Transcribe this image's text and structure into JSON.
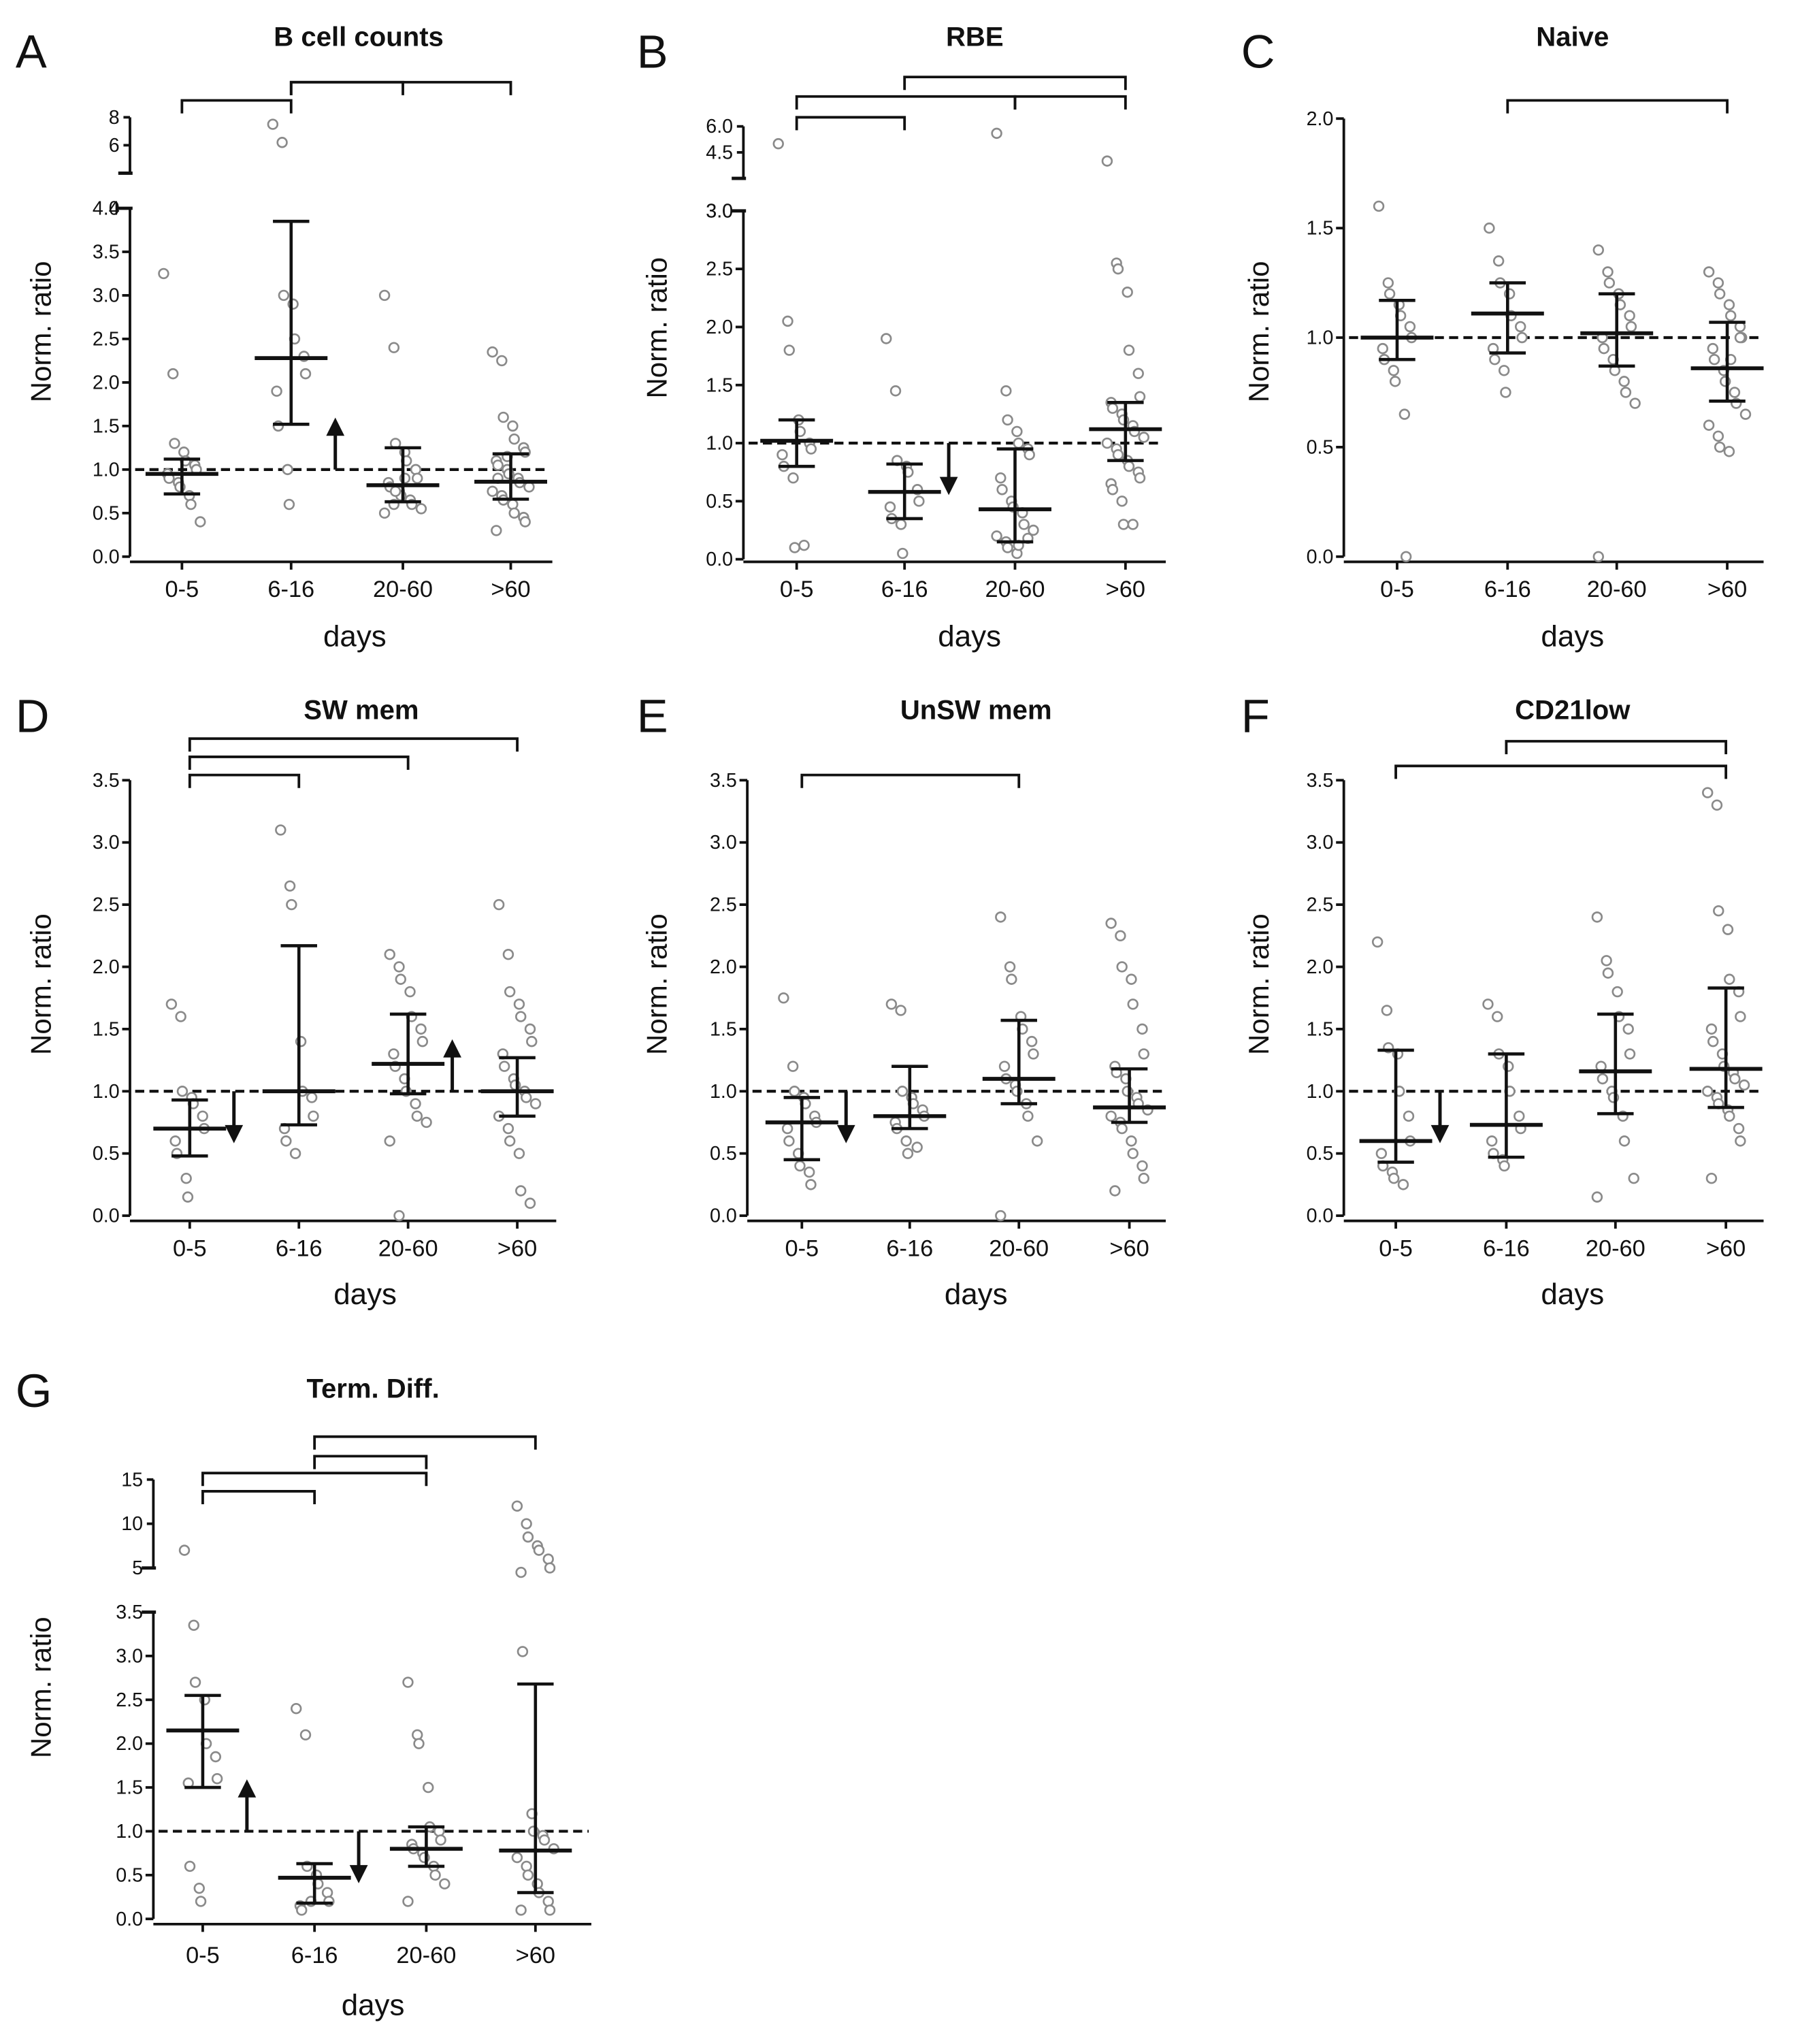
{
  "colors": {
    "ink": "#111111",
    "point": "#8a8a8a",
    "background": "#ffffff"
  },
  "chart_data": [
    {
      "panel": "A",
      "title": "B cell counts",
      "type": "scatter",
      "xlabel": "days",
      "ylabel": "Norm. ratio",
      "categories": [
        "0-5",
        "6-16",
        "20-60",
        ">60"
      ],
      "ylim": [
        0,
        4.0
      ],
      "yticks": [
        "0.0",
        "0.5",
        "1.0",
        "1.5",
        "2.0",
        "2.5",
        "3.0",
        "3.5",
        "4.0"
      ],
      "broken_axis": {
        "ylim": [
          4,
          8
        ],
        "yticks": [
          "4",
          "6",
          "8"
        ]
      },
      "reference_line": 1.0,
      "medians": [
        0.95,
        2.28,
        0.82,
        0.86
      ],
      "iqr": [
        [
          0.72,
          1.12
        ],
        [
          1.52,
          3.85
        ],
        [
          0.63,
          1.25
        ],
        [
          0.66,
          1.18
        ]
      ],
      "arrow": {
        "category": "6-16",
        "direction": "up"
      },
      "significance_brackets": [
        [
          "0-5",
          "6-16"
        ],
        [
          "6-16",
          "20-60"
        ],
        [
          "6-16",
          ">60"
        ]
      ],
      "points": [
        [
          3.25,
          2.1,
          1.3,
          1.2,
          1.1,
          1.05,
          1.0,
          0.95,
          0.9,
          0.85,
          0.8,
          0.7,
          0.6,
          0.4
        ],
        [
          7.5,
          6.2,
          3.0,
          2.9,
          2.5,
          2.3,
          2.1,
          1.9,
          1.5,
          1.0,
          0.6
        ],
        [
          3.0,
          2.4,
          1.3,
          1.2,
          1.1,
          1.0,
          0.9,
          0.85,
          0.8,
          0.75,
          0.7,
          0.65,
          0.6,
          0.55,
          0.5,
          0.6,
          0.75,
          0.9
        ],
        [
          2.35,
          2.25,
          1.6,
          1.5,
          1.35,
          1.25,
          1.2,
          1.1,
          1.05,
          1.0,
          0.95,
          0.9,
          0.85,
          0.8,
          0.75,
          0.7,
          0.65,
          0.6,
          0.5,
          0.45,
          0.4,
          0.3,
          0.9,
          1.15
        ]
      ]
    },
    {
      "panel": "B",
      "title": "RBE",
      "type": "scatter",
      "xlabel": "days",
      "ylabel": "Norm. ratio",
      "categories": [
        "0-5",
        "6-16",
        "20-60",
        ">60"
      ],
      "ylim": [
        0,
        3.0
      ],
      "yticks": [
        "0.0",
        "0.5",
        "1.0",
        "1.5",
        "2.0",
        "2.5",
        "3.0"
      ],
      "broken_axis": {
        "ylim": [
          3.0,
          6.0
        ],
        "yticks": [
          "3.0",
          "4.5",
          "6.0"
        ]
      },
      "reference_line": 1.0,
      "medians": [
        1.02,
        0.58,
        0.43,
        1.12
      ],
      "iqr": [
        [
          0.8,
          1.2
        ],
        [
          0.35,
          0.82
        ],
        [
          0.15,
          0.95
        ],
        [
          0.85,
          1.35
        ]
      ],
      "arrow": {
        "category": "6-16",
        "direction": "down"
      },
      "significance_brackets": [
        [
          "0-5",
          "6-16"
        ],
        [
          "0-5",
          "20-60"
        ],
        [
          "6-16",
          ">60"
        ],
        [
          "20-60",
          ">60"
        ]
      ],
      "points": [
        [
          5.0,
          2.05,
          1.8,
          1.2,
          1.1,
          1.0,
          0.95,
          0.9,
          0.8,
          0.7,
          0.1,
          0.12
        ],
        [
          1.9,
          1.45,
          0.85,
          0.8,
          0.75,
          0.6,
          0.5,
          0.45,
          0.35,
          0.3,
          0.05
        ],
        [
          5.6,
          1.45,
          1.2,
          1.1,
          1.0,
          0.95,
          0.9,
          0.7,
          0.6,
          0.5,
          0.45,
          0.4,
          0.3,
          0.25,
          0.2,
          0.15,
          0.1,
          0.05,
          0.12,
          0.18
        ],
        [
          4.0,
          2.55,
          2.5,
          2.3,
          1.8,
          1.6,
          1.4,
          1.35,
          1.3,
          1.25,
          1.2,
          1.15,
          1.1,
          1.05,
          1.0,
          0.95,
          0.9,
          0.85,
          0.8,
          0.75,
          0.7,
          0.65,
          0.6,
          0.5,
          0.3,
          0.3
        ]
      ]
    },
    {
      "panel": "C",
      "title": "Naive",
      "type": "scatter",
      "xlabel": "days",
      "ylabel": "Norm. ratio",
      "categories": [
        "0-5",
        "6-16",
        "20-60",
        ">60"
      ],
      "ylim": [
        0,
        2.0
      ],
      "yticks": [
        "0.0",
        "0.5",
        "1.0",
        "1.5",
        "2.0"
      ],
      "reference_line": 1.0,
      "medians": [
        1.0,
        1.11,
        1.02,
        0.86
      ],
      "iqr": [
        [
          0.9,
          1.17
        ],
        [
          0.93,
          1.25
        ],
        [
          0.87,
          1.2
        ],
        [
          0.71,
          1.07
        ]
      ],
      "significance_brackets": [
        [
          "6-16",
          ">60"
        ]
      ],
      "points": [
        [
          1.6,
          1.25,
          1.2,
          1.15,
          1.1,
          1.05,
          1.0,
          0.95,
          0.9,
          0.85,
          0.8,
          0.65,
          0.0
        ],
        [
          1.5,
          1.35,
          1.25,
          1.2,
          1.1,
          1.05,
          1.0,
          0.95,
          0.9,
          0.85,
          0.75
        ],
        [
          1.4,
          1.3,
          1.25,
          1.2,
          1.15,
          1.1,
          1.05,
          1.0,
          0.95,
          0.9,
          0.85,
          0.8,
          0.75,
          0.7,
          0.0
        ],
        [
          1.3,
          1.25,
          1.2,
          1.15,
          1.1,
          1.05,
          1.0,
          0.95,
          0.9,
          0.85,
          0.8,
          0.75,
          0.7,
          0.65,
          0.6,
          0.55,
          0.5,
          0.48,
          0.9,
          1.0
        ]
      ]
    },
    {
      "panel": "D",
      "title": "SW mem",
      "type": "scatter",
      "xlabel": "days",
      "ylabel": "Norm. ratio",
      "categories": [
        "0-5",
        "6-16",
        "20-60",
        ">60"
      ],
      "ylim": [
        0,
        3.5
      ],
      "yticks": [
        "0.0",
        "0.5",
        "1.0",
        "1.5",
        "2.0",
        "2.5",
        "3.0",
        "3.5"
      ],
      "reference_line": 1.0,
      "medians": [
        0.7,
        1.0,
        1.22,
        1.0
      ],
      "iqr": [
        [
          0.48,
          0.93
        ],
        [
          0.73,
          2.17
        ],
        [
          0.98,
          1.62
        ],
        [
          0.8,
          1.27
        ]
      ],
      "arrows": [
        {
          "category": "0-5",
          "direction": "down"
        },
        {
          "category": "20-60",
          "direction": "up"
        }
      ],
      "significance_brackets": [
        [
          "0-5",
          "6-16"
        ],
        [
          "0-5",
          "20-60"
        ],
        [
          "0-5",
          ">60"
        ]
      ],
      "points": [
        [
          1.7,
          1.6,
          1.0,
          0.95,
          0.9,
          0.8,
          0.7,
          0.6,
          0.5,
          0.3,
          0.15
        ],
        [
          3.1,
          2.65,
          2.5,
          1.4,
          1.0,
          0.95,
          0.8,
          0.7,
          0.6,
          0.5
        ],
        [
          2.1,
          2.0,
          1.9,
          1.8,
          1.6,
          1.5,
          1.4,
          1.3,
          1.2,
          1.1,
          1.0,
          0.9,
          0.8,
          0.75,
          0.6,
          0.0
        ],
        [
          2.5,
          2.1,
          1.8,
          1.7,
          1.6,
          1.5,
          1.4,
          1.3,
          1.2,
          1.1,
          1.05,
          1.0,
          0.95,
          0.9,
          0.8,
          0.7,
          0.6,
          0.5,
          0.2,
          0.1
        ]
      ]
    },
    {
      "panel": "E",
      "title": "UnSW mem",
      "type": "scatter",
      "xlabel": "days",
      "ylabel": "Norm. ratio",
      "categories": [
        "0-5",
        "6-16",
        "20-60",
        ">60"
      ],
      "ylim": [
        0,
        3.5
      ],
      "yticks": [
        "0.0",
        "0.5",
        "1.0",
        "1.5",
        "2.0",
        "2.5",
        "3.0",
        "3.5"
      ],
      "reference_line": 1.0,
      "medians": [
        0.75,
        0.8,
        1.1,
        0.87
      ],
      "iqr": [
        [
          0.45,
          0.95
        ],
        [
          0.7,
          1.2
        ],
        [
          0.9,
          1.57
        ],
        [
          0.75,
          1.18
        ]
      ],
      "arrow": {
        "category": "0-5",
        "direction": "down"
      },
      "significance_brackets": [
        [
          "0-5",
          "20-60"
        ]
      ],
      "points": [
        [
          1.75,
          1.2,
          1.0,
          0.95,
          0.9,
          0.8,
          0.75,
          0.7,
          0.6,
          0.5,
          0.4,
          0.35,
          0.25
        ],
        [
          1.7,
          1.65,
          1.0,
          0.95,
          0.9,
          0.85,
          0.8,
          0.75,
          0.7,
          0.6,
          0.5,
          0.55
        ],
        [
          2.4,
          2.0,
          1.9,
          1.6,
          1.5,
          1.4,
          1.3,
          1.2,
          1.1,
          1.05,
          1.0,
          0.9,
          0.8,
          0.6,
          0.0
        ],
        [
          2.35,
          2.25,
          2.0,
          1.9,
          1.7,
          1.5,
          1.3,
          1.2,
          1.15,
          1.1,
          1.0,
          0.95,
          0.9,
          0.85,
          0.8,
          0.75,
          0.7,
          0.6,
          0.5,
          0.4,
          0.3,
          0.2
        ]
      ]
    },
    {
      "panel": "F",
      "title": "CD21low",
      "type": "scatter",
      "xlabel": "days",
      "ylabel": "Norm. ratio",
      "categories": [
        "0-5",
        "6-16",
        "20-60",
        ">60"
      ],
      "ylim": [
        0,
        3.5
      ],
      "yticks": [
        "0.0",
        "0.5",
        "1.0",
        "1.5",
        "2.0",
        "2.5",
        "3.0",
        "3.5"
      ],
      "reference_line": 1.0,
      "medians": [
        0.6,
        0.73,
        1.16,
        1.18
      ],
      "iqr": [
        [
          0.43,
          1.33
        ],
        [
          0.47,
          1.3
        ],
        [
          0.82,
          1.62
        ],
        [
          0.87,
          1.83
        ]
      ],
      "arrow": {
        "category": "0-5",
        "direction": "down"
      },
      "significance_brackets": [
        [
          "0-5",
          ">60"
        ],
        [
          "6-16",
          ">60"
        ]
      ],
      "points": [
        [
          2.2,
          1.65,
          1.35,
          1.3,
          1.0,
          0.8,
          0.6,
          0.5,
          0.4,
          0.35,
          0.3,
          0.25
        ],
        [
          1.7,
          1.6,
          1.3,
          1.2,
          1.0,
          0.8,
          0.7,
          0.6,
          0.5,
          0.45,
          0.4
        ],
        [
          2.4,
          2.05,
          1.95,
          1.8,
          1.6,
          1.5,
          1.3,
          1.2,
          1.1,
          1.0,
          0.95,
          0.8,
          0.6,
          0.3,
          0.15
        ],
        [
          3.4,
          3.3,
          2.45,
          2.3,
          1.9,
          1.8,
          1.6,
          1.5,
          1.4,
          1.3,
          1.2,
          1.15,
          1.1,
          1.05,
          1.0,
          0.95,
          0.9,
          0.85,
          0.8,
          0.7,
          0.6,
          0.3
        ]
      ]
    },
    {
      "panel": "G",
      "title": "Term. Diff.",
      "type": "scatter",
      "xlabel": "days",
      "ylabel": "Norm. ratio",
      "categories": [
        "0-5",
        "6-16",
        "20-60",
        ">60"
      ],
      "ylim": [
        0,
        3.5
      ],
      "yticks": [
        "0.0",
        "0.5",
        "1.0",
        "1.5",
        "2.0",
        "2.5",
        "3.0",
        "3.5"
      ],
      "broken_axis": {
        "ylim": [
          5,
          15
        ],
        "yticks": [
          "5",
          "10",
          "15"
        ]
      },
      "reference_line": 1.0,
      "medians": [
        2.15,
        0.47,
        0.8,
        0.78
      ],
      "iqr": [
        [
          1.5,
          2.55
        ],
        [
          0.18,
          0.63
        ],
        [
          0.6,
          1.05
        ],
        [
          0.3,
          2.68
        ]
      ],
      "arrows": [
        {
          "category": "0-5",
          "direction": "up"
        },
        {
          "category": "6-16",
          "direction": "down"
        }
      ],
      "significance_brackets": [
        [
          "0-5",
          "6-16"
        ],
        [
          "0-5",
          "20-60"
        ],
        [
          "6-16",
          "20-60"
        ],
        [
          "6-16",
          ">60"
        ]
      ],
      "points": [
        [
          7.0,
          3.35,
          2.7,
          2.5,
          2.0,
          1.85,
          1.6,
          1.55,
          0.6,
          0.35,
          0.2
        ],
        [
          2.4,
          2.1,
          0.6,
          0.5,
          0.4,
          0.3,
          0.2,
          0.15,
          0.1,
          0.2
        ],
        [
          2.7,
          2.1,
          2.0,
          1.5,
          1.05,
          1.0,
          0.9,
          0.85,
          0.8,
          0.75,
          0.7,
          0.6,
          0.5,
          0.4,
          0.2
        ],
        [
          12.0,
          10.0,
          8.5,
          7.5,
          7.0,
          6.0,
          5.0,
          4.5,
          3.05,
          1.2,
          1.0,
          0.95,
          0.9,
          0.8,
          0.7,
          0.6,
          0.5,
          0.4,
          0.3,
          0.2,
          0.1,
          0.1
        ]
      ]
    }
  ]
}
